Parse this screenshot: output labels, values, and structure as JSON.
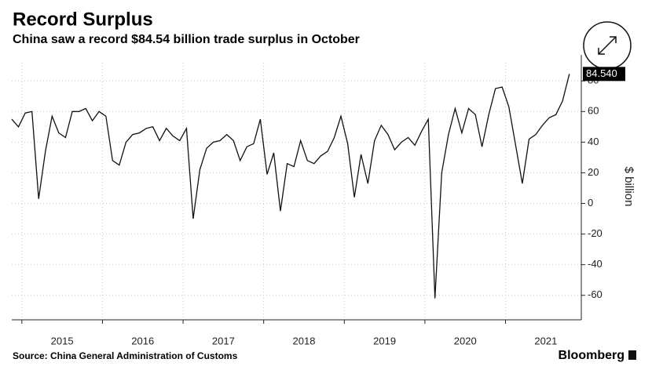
{
  "chart_data": {
    "type": "line",
    "title": "Record Surplus",
    "subtitle": "China saw a record $84.54 billion trade surplus in October",
    "source": "Source: China General Administration of Customs",
    "brand": "Bloomberg",
    "y_label": "$ billion",
    "x": [
      2014.875,
      2014.958,
      2015.042,
      2015.125,
      2015.208,
      2015.292,
      2015.375,
      2015.458,
      2015.542,
      2015.625,
      2015.708,
      2015.792,
      2015.875,
      2015.958,
      2016.042,
      2016.125,
      2016.208,
      2016.292,
      2016.375,
      2016.458,
      2016.542,
      2016.625,
      2016.708,
      2016.792,
      2016.875,
      2016.958,
      2017.042,
      2017.125,
      2017.208,
      2017.292,
      2017.375,
      2017.458,
      2017.542,
      2017.625,
      2017.708,
      2017.792,
      2017.875,
      2017.958,
      2018.042,
      2018.125,
      2018.208,
      2018.292,
      2018.375,
      2018.458,
      2018.542,
      2018.625,
      2018.708,
      2018.792,
      2018.875,
      2018.958,
      2019.042,
      2019.125,
      2019.208,
      2019.292,
      2019.375,
      2019.458,
      2019.542,
      2019.625,
      2019.708,
      2019.792,
      2019.875,
      2019.958,
      2020.042,
      2020.125,
      2020.208,
      2020.292,
      2020.375,
      2020.458,
      2020.542,
      2020.625,
      2020.708,
      2020.792,
      2020.875,
      2020.958,
      2021.042,
      2021.125,
      2021.208,
      2021.292,
      2021.375,
      2021.458,
      2021.542,
      2021.625,
      2021.708,
      2021.792
    ],
    "series": [
      {
        "name": "Trade surplus",
        "color": "#111111",
        "values": [
          55,
          50,
          59,
          60,
          3,
          34,
          57,
          46,
          43,
          60,
          60,
          62,
          54,
          60,
          57,
          28,
          25,
          40,
          45,
          46,
          49,
          50,
          41,
          49,
          44,
          41,
          49,
          -10,
          22,
          36,
          40,
          41,
          45,
          41,
          28,
          37,
          39,
          55,
          19,
          33,
          -5,
          26,
          24,
          41,
          28,
          26,
          31,
          34,
          43,
          57,
          39,
          4,
          32,
          13,
          41,
          51,
          45,
          35,
          40,
          43,
          38,
          47,
          55,
          -62,
          20,
          45,
          62,
          46,
          62,
          58,
          37,
          58,
          75,
          76,
          63,
          38,
          13,
          42,
          45,
          51,
          56,
          58,
          67,
          84.54
        ],
        "value_labels": [
          null,
          null,
          null,
          null,
          null,
          null,
          null,
          null,
          null,
          null,
          null,
          null,
          null,
          null,
          null,
          null,
          null,
          null,
          null,
          null,
          null,
          null,
          null,
          null,
          null,
          null,
          null,
          null,
          null,
          null,
          null,
          null,
          null,
          null,
          null,
          null,
          null,
          null,
          null,
          null,
          null,
          null,
          null,
          null,
          null,
          null,
          null,
          null,
          null,
          null,
          null,
          null,
          null,
          null,
          null,
          null,
          null,
          null,
          null,
          null,
          null,
          null,
          null,
          null,
          null,
          null,
          null,
          null,
          null,
          null,
          null,
          null,
          null,
          null,
          null,
          null,
          null,
          null,
          null,
          null,
          null,
          null,
          null,
          "84.540"
        ]
      }
    ],
    "xlim": [
      2014.875,
      2021.94
    ],
    "xticks": [
      {
        "value": 2015,
        "label": "2015"
      },
      {
        "value": 2016,
        "label": "2016"
      },
      {
        "value": 2017,
        "label": "2017"
      },
      {
        "value": 2018,
        "label": "2018"
      },
      {
        "value": 2019,
        "label": "2019"
      },
      {
        "value": 2020,
        "label": "2020"
      },
      {
        "value": 2021,
        "label": "2021"
      }
    ],
    "ylim": [
      -76,
      97
    ],
    "yticks": [
      -60,
      -40,
      -20,
      0,
      20,
      40,
      60,
      80
    ],
    "grid": true
  }
}
